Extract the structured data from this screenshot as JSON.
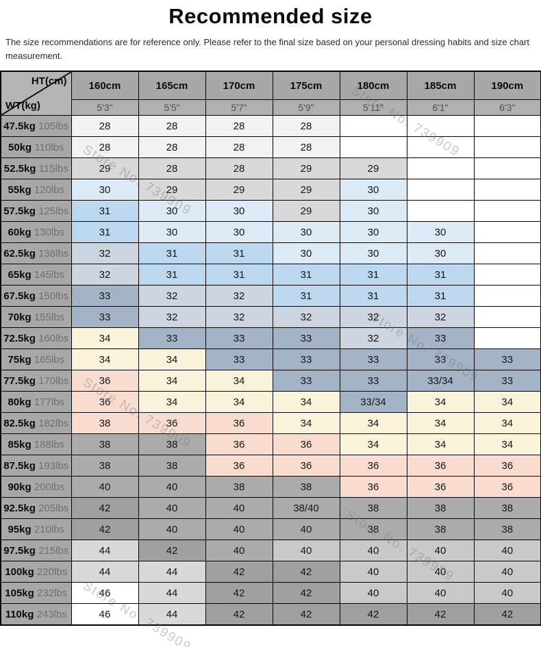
{
  "title": "Recommended size",
  "subtitle": "The size recommendations are for reference only. Please refer to the final size based on your personal dressing habits and size chart measurement.",
  "watermark": {
    "text": "Store No. 739909"
  },
  "table": {
    "corner": {
      "top_label": "HT(cm)",
      "bottom_label": "WT(kg)"
    },
    "palette": {
      "w": "#ffffff",
      "f": "#f2f2f2",
      "g": "#d9d9d9",
      "pb": "#dcebf6",
      "b": "#bdd7ee",
      "lbg": "#ccd5e0",
      "bg": "#a4b4c6",
      "cr": "#faf4dc",
      "pk": "#f8dcd0",
      "mg": "#ababab",
      "lg2": "#c9c9c9",
      "dg": "#a0a0a0"
    },
    "header_bg": "#a8a8a8",
    "subheader_bg": "#b0b0b0",
    "cell_colors": [
      [
        "f",
        "f",
        "f",
        "f",
        "w",
        "w",
        "w"
      ],
      [
        "f",
        "f",
        "f",
        "f",
        "w",
        "w",
        "w"
      ],
      [
        "g",
        "g",
        "g",
        "g",
        "g",
        "w",
        "w"
      ],
      [
        "pb",
        "g",
        "g",
        "g",
        "pb",
        "w",
        "w"
      ],
      [
        "b",
        "pb",
        "pb",
        "g",
        "pb",
        "w",
        "w"
      ],
      [
        "b",
        "pb",
        "pb",
        "pb",
        "pb",
        "pb",
        "w"
      ],
      [
        "lbg",
        "b",
        "b",
        "pb",
        "pb",
        "pb",
        "w"
      ],
      [
        "lbg",
        "b",
        "b",
        "b",
        "b",
        "b",
        "w"
      ],
      [
        "bg",
        "lbg",
        "lbg",
        "b",
        "b",
        "b",
        "w"
      ],
      [
        "bg",
        "lbg",
        "lbg",
        "lbg",
        "lbg",
        "lbg",
        "w"
      ],
      [
        "cr",
        "bg",
        "bg",
        "bg",
        "lbg",
        "bg",
        "w"
      ],
      [
        "cr",
        "cr",
        "bg",
        "bg",
        "bg",
        "bg",
        "bg"
      ],
      [
        "pk",
        "cr",
        "cr",
        "bg",
        "bg",
        "bg",
        "bg"
      ],
      [
        "pk",
        "cr",
        "cr",
        "cr",
        "bg",
        "cr",
        "cr"
      ],
      [
        "pk",
        "pk",
        "pk",
        "cr",
        "cr",
        "cr",
        "cr"
      ],
      [
        "mg",
        "mg",
        "pk",
        "pk",
        "cr",
        "cr",
        "cr"
      ],
      [
        "mg",
        "mg",
        "pk",
        "pk",
        "pk",
        "pk",
        "pk"
      ],
      [
        "mg",
        "mg",
        "mg",
        "mg",
        "pk",
        "pk",
        "pk"
      ],
      [
        "dg",
        "mg",
        "mg",
        "mg",
        "mg",
        "mg",
        "mg"
      ],
      [
        "dg",
        "mg",
        "mg",
        "mg",
        "mg",
        "mg",
        "mg"
      ],
      [
        "g",
        "dg",
        "mg",
        "lg2",
        "lg2",
        "lg2",
        "lg2"
      ],
      [
        "g",
        "g",
        "dg",
        "dg",
        "lg2",
        "lg2",
        "lg2"
      ],
      [
        "w",
        "g",
        "dg",
        "dg",
        "lg2",
        "lg2",
        "lg2"
      ],
      [
        "w",
        "g",
        "dg",
        "dg",
        "dg",
        "dg",
        "dg"
      ]
    ]
  },
  "chart_data": {
    "type": "table",
    "title": "Recommended size",
    "columns_cm": [
      "160cm",
      "165cm",
      "170cm",
      "175cm",
      "180cm",
      "185cm",
      "190cm"
    ],
    "columns_ft": [
      "5'3\"",
      "5'5\"",
      "5'7\"",
      "5'9\"",
      "5'11\"",
      "6'1\"",
      "6'3\""
    ],
    "rows_kg": [
      "47.5kg",
      "50kg",
      "52.5kg",
      "55kg",
      "57.5kg",
      "60kg",
      "62.5kg",
      "65kg",
      "67.5kg",
      "70kg",
      "72.5kg",
      "75kg",
      "77.5kg",
      "80kg",
      "82.5kg",
      "85kg",
      "87.5kg",
      "90kg",
      "92.5kg",
      "95kg",
      "97.5kg",
      "100kg",
      "105kg",
      "110kg"
    ],
    "rows_lbs": [
      "105lbs",
      "110lbs",
      "115lbs",
      "120lbs",
      "125lbs",
      "130lbs",
      "138lbs",
      "145lbs",
      "150lbs",
      "155lbs",
      "160lbs",
      "165lbs",
      "170lbs",
      "177lbs",
      "182lbs",
      "188lbs",
      "193lbs",
      "200lbs",
      "205lbs",
      "210lbs",
      "215lbs",
      "220lbs",
      "232lbs",
      "243lbs"
    ],
    "values": [
      [
        "28",
        "28",
        "28",
        "28",
        "",
        "",
        ""
      ],
      [
        "28",
        "28",
        "28",
        "28",
        "",
        "",
        ""
      ],
      [
        "29",
        "28",
        "28",
        "29",
        "29",
        "",
        ""
      ],
      [
        "30",
        "29",
        "29",
        "29",
        "30",
        "",
        ""
      ],
      [
        "31",
        "30",
        "30",
        "29",
        "30",
        "",
        ""
      ],
      [
        "31",
        "30",
        "30",
        "30",
        "30",
        "30",
        ""
      ],
      [
        "32",
        "31",
        "31",
        "30",
        "30",
        "30",
        ""
      ],
      [
        "32",
        "31",
        "31",
        "31",
        "31",
        "31",
        ""
      ],
      [
        "33",
        "32",
        "32",
        "31",
        "31",
        "31",
        ""
      ],
      [
        "33",
        "32",
        "32",
        "32",
        "32",
        "32",
        ""
      ],
      [
        "34",
        "33",
        "33",
        "33",
        "32",
        "33",
        ""
      ],
      [
        "34",
        "34",
        "33",
        "33",
        "33",
        "33",
        "33"
      ],
      [
        "36",
        "34",
        "34",
        "33",
        "33",
        "33/34",
        "33"
      ],
      [
        "36",
        "34",
        "34",
        "34",
        "33/34",
        "34",
        "34"
      ],
      [
        "38",
        "36",
        "36",
        "34",
        "34",
        "34",
        "34"
      ],
      [
        "38",
        "38",
        "36",
        "36",
        "34",
        "34",
        "34"
      ],
      [
        "38",
        "38",
        "36",
        "36",
        "36",
        "36",
        "36"
      ],
      [
        "40",
        "40",
        "38",
        "38",
        "36",
        "36",
        "36"
      ],
      [
        "42",
        "40",
        "40",
        "38/40",
        "38",
        "38",
        "38"
      ],
      [
        "42",
        "40",
        "40",
        "40",
        "38",
        "38",
        "38"
      ],
      [
        "44",
        "42",
        "40",
        "40",
        "40",
        "40",
        "40"
      ],
      [
        "44",
        "44",
        "42",
        "42",
        "40",
        "40",
        "40"
      ],
      [
        "46",
        "44",
        "42",
        "42",
        "40",
        "40",
        "40"
      ],
      [
        "46",
        "44",
        "42",
        "42",
        "42",
        "42",
        "42"
      ]
    ]
  }
}
